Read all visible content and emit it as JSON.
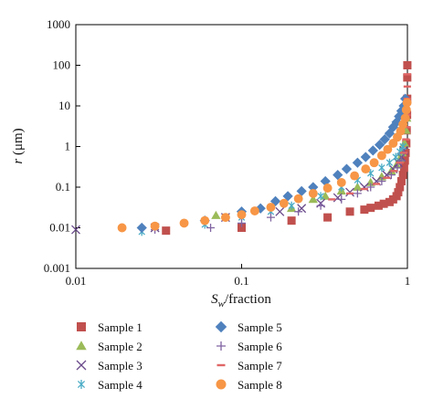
{
  "chart_data": {
    "type": "scatter",
    "title": "",
    "xlabel": {
      "main": "S",
      "sub": "w",
      "rest": "/fraction"
    },
    "ylabel": {
      "main": "r",
      "rest": " (μm)"
    },
    "x_scale": "log",
    "y_scale": "log",
    "xlim": [
      0.01,
      1
    ],
    "ylim": [
      0.001,
      1000
    ],
    "x_ticks": [
      0.01,
      0.1,
      1
    ],
    "x_tick_labels": [
      "0.01",
      "0.1",
      "1"
    ],
    "y_ticks": [
      0.001,
      0.01,
      0.1,
      1,
      10,
      100,
      1000
    ],
    "y_tick_labels": [
      "0.001",
      "0.01",
      "0.1",
      "1",
      "10",
      "100",
      "1000"
    ],
    "grid": false,
    "legend_position": "bottom",
    "series": [
      {
        "name": "Sample 1",
        "marker": "square",
        "color": "#c0504d",
        "points": [
          [
            0.035,
            0.0085
          ],
          [
            0.1,
            0.01
          ],
          [
            0.2,
            0.015
          ],
          [
            0.33,
            0.018
          ],
          [
            0.45,
            0.025
          ],
          [
            0.55,
            0.028
          ],
          [
            0.6,
            0.031
          ],
          [
            0.67,
            0.035
          ],
          [
            0.72,
            0.039
          ],
          [
            0.78,
            0.043
          ],
          [
            0.82,
            0.05
          ],
          [
            0.86,
            0.06
          ],
          [
            0.88,
            0.075
          ],
          [
            0.9,
            0.1
          ],
          [
            0.92,
            0.14
          ],
          [
            0.94,
            0.2
          ],
          [
            0.955,
            0.3
          ],
          [
            0.965,
            0.45
          ],
          [
            0.975,
            0.7
          ],
          [
            0.985,
            1.2
          ],
          [
            0.99,
            2.5
          ],
          [
            0.995,
            6
          ],
          [
            0.997,
            15
          ],
          [
            0.998,
            50
          ],
          [
            0.999,
            100
          ]
        ]
      },
      {
        "name": "Sample 2",
        "marker": "triangle",
        "color": "#9bbb59",
        "points": [
          [
            0.07,
            0.02
          ],
          [
            0.2,
            0.03
          ],
          [
            0.27,
            0.05
          ],
          [
            0.32,
            0.06
          ],
          [
            0.4,
            0.08
          ],
          [
            0.5,
            0.1
          ],
          [
            0.6,
            0.13
          ],
          [
            0.7,
            0.18
          ],
          [
            0.8,
            0.25
          ],
          [
            0.86,
            0.35
          ],
          [
            0.9,
            0.5
          ],
          [
            0.93,
            0.7
          ],
          [
            0.96,
            1.2
          ],
          [
            0.98,
            2.5
          ],
          [
            0.99,
            5
          ]
        ]
      },
      {
        "name": "Sample 3",
        "marker": "x",
        "color": "#6a4a8a",
        "points": [
          [
            0.01,
            0.009
          ],
          [
            0.03,
            0.01
          ],
          [
            0.08,
            0.018
          ],
          [
            0.17,
            0.025
          ],
          [
            0.23,
            0.03
          ],
          [
            0.3,
            0.04
          ],
          [
            0.38,
            0.055
          ],
          [
            0.45,
            0.075
          ],
          [
            0.55,
            0.1
          ],
          [
            0.65,
            0.14
          ],
          [
            0.75,
            0.2
          ],
          [
            0.82,
            0.28
          ],
          [
            0.88,
            0.4
          ],
          [
            0.92,
            0.55
          ],
          [
            0.95,
            0.8
          ]
        ]
      },
      {
        "name": "Sample 4",
        "marker": "asterisk",
        "color": "#4bacc6",
        "points": [
          [
            0.025,
            0.008
          ],
          [
            0.06,
            0.012
          ],
          [
            0.1,
            0.018
          ],
          [
            0.15,
            0.025
          ],
          [
            0.2,
            0.035
          ],
          [
            0.3,
            0.06
          ],
          [
            0.4,
            0.1
          ],
          [
            0.5,
            0.15
          ],
          [
            0.6,
            0.22
          ],
          [
            0.7,
            0.3
          ],
          [
            0.78,
            0.4
          ],
          [
            0.85,
            0.55
          ],
          [
            0.9,
            0.75
          ],
          [
            0.94,
            1
          ]
        ]
      },
      {
        "name": "Sample 5",
        "marker": "diamond",
        "color": "#4f81bd",
        "points": [
          [
            0.025,
            0.01
          ],
          [
            0.06,
            0.015
          ],
          [
            0.1,
            0.025
          ],
          [
            0.13,
            0.03
          ],
          [
            0.16,
            0.045
          ],
          [
            0.19,
            0.06
          ],
          [
            0.23,
            0.08
          ],
          [
            0.27,
            0.1
          ],
          [
            0.32,
            0.14
          ],
          [
            0.38,
            0.2
          ],
          [
            0.43,
            0.28
          ],
          [
            0.5,
            0.4
          ],
          [
            0.56,
            0.55
          ],
          [
            0.62,
            0.8
          ],
          [
            0.68,
            1.1
          ],
          [
            0.73,
            1.5
          ],
          [
            0.78,
            2.1
          ],
          [
            0.82,
            3
          ],
          [
            0.86,
            4
          ],
          [
            0.89,
            5.5
          ],
          [
            0.92,
            7.5
          ],
          [
            0.95,
            10
          ],
          [
            0.97,
            15
          ]
        ]
      },
      {
        "name": "Sample 6",
        "marker": "plus",
        "color": "#8064a2",
        "points": [
          [
            0.03,
            0.009
          ],
          [
            0.065,
            0.01
          ],
          [
            0.1,
            0.013
          ],
          [
            0.15,
            0.018
          ],
          [
            0.22,
            0.025
          ],
          [
            0.3,
            0.035
          ],
          [
            0.4,
            0.05
          ],
          [
            0.5,
            0.07
          ],
          [
            0.6,
            0.1
          ],
          [
            0.7,
            0.14
          ],
          [
            0.8,
            0.2
          ],
          [
            0.87,
            0.3
          ],
          [
            0.92,
            0.45
          ],
          [
            0.95,
            0.7
          ]
        ]
      },
      {
        "name": "Sample 7",
        "marker": "dash",
        "color": "#e06666",
        "points": [
          [
            0.35,
            0.05
          ],
          [
            0.45,
            0.07
          ],
          [
            0.55,
            0.09
          ],
          [
            0.65,
            0.12
          ],
          [
            0.75,
            0.17
          ],
          [
            0.83,
            0.25
          ],
          [
            0.9,
            0.4
          ],
          [
            0.95,
            0.7
          ],
          [
            0.98,
            1.5
          ],
          [
            0.99,
            3
          ],
          [
            0.995,
            6
          ],
          [
            0.997,
            15
          ],
          [
            0.998,
            30
          ],
          [
            0.999,
            60
          ]
        ]
      },
      {
        "name": "Sample 8",
        "marker": "circle",
        "color": "#f79646",
        "points": [
          [
            0.019,
            0.01
          ],
          [
            0.03,
            0.011
          ],
          [
            0.045,
            0.013
          ],
          [
            0.06,
            0.015
          ],
          [
            0.08,
            0.018
          ],
          [
            0.1,
            0.021
          ],
          [
            0.12,
            0.026
          ],
          [
            0.15,
            0.032
          ],
          [
            0.18,
            0.04
          ],
          [
            0.22,
            0.052
          ],
          [
            0.27,
            0.07
          ],
          [
            0.33,
            0.095
          ],
          [
            0.4,
            0.13
          ],
          [
            0.48,
            0.19
          ],
          [
            0.56,
            0.28
          ],
          [
            0.63,
            0.4
          ],
          [
            0.7,
            0.6
          ],
          [
            0.76,
            0.85
          ],
          [
            0.82,
            1.2
          ],
          [
            0.87,
            1.7
          ],
          [
            0.91,
            2.4
          ],
          [
            0.94,
            3.5
          ],
          [
            0.97,
            5
          ],
          [
            0.985,
            8
          ],
          [
            0.995,
            12
          ]
        ]
      }
    ]
  }
}
